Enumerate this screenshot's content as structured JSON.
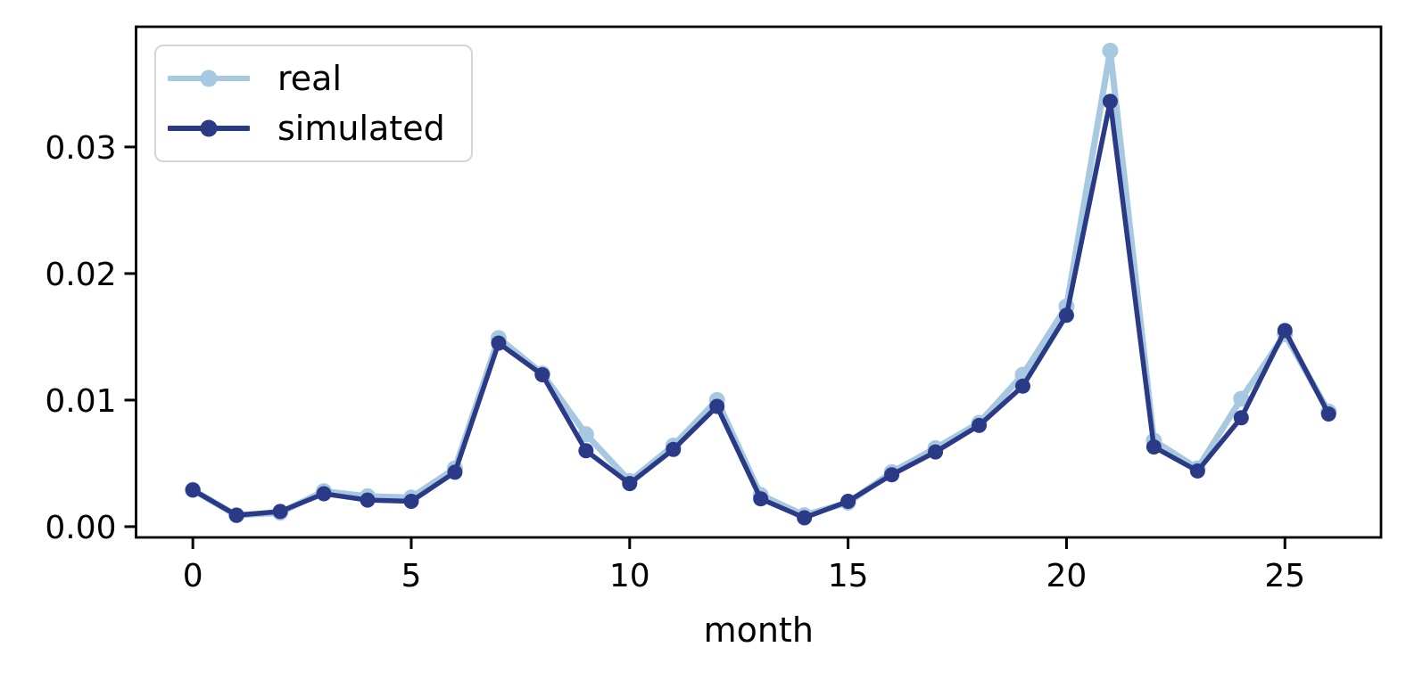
{
  "figure": {
    "background": "#ffffff",
    "axis_color": "#000000",
    "legend_border_color": "#d5d5d5"
  },
  "chart_data": {
    "type": "line",
    "title": "",
    "xlabel": "month",
    "ylabel": "",
    "grid": false,
    "legend_position": "upper-left",
    "x": [
      0,
      1,
      2,
      3,
      4,
      5,
      6,
      7,
      8,
      9,
      10,
      11,
      12,
      13,
      14,
      15,
      16,
      17,
      18,
      19,
      20,
      21,
      22,
      23,
      24,
      25,
      26
    ],
    "series": [
      {
        "name": "real",
        "color": "#a6c9e1",
        "marker": "circle",
        "values": [
          0.0029,
          0.0009,
          0.0011,
          0.0028,
          0.0024,
          0.0023,
          0.0046,
          0.0149,
          0.0121,
          0.0073,
          0.0036,
          0.0064,
          0.01,
          0.0025,
          0.0009,
          0.0019,
          0.0043,
          0.0062,
          0.0082,
          0.012,
          0.0174,
          0.0376,
          0.0068,
          0.0046,
          0.0101,
          0.0152,
          0.0091
        ]
      },
      {
        "name": "simulated",
        "color": "#2b3a86",
        "marker": "circle",
        "values": [
          0.0029,
          0.0009,
          0.0012,
          0.0026,
          0.0021,
          0.002,
          0.0043,
          0.0145,
          0.012,
          0.006,
          0.0034,
          0.0061,
          0.0095,
          0.0022,
          0.0007,
          0.002,
          0.0041,
          0.0059,
          0.008,
          0.0111,
          0.0167,
          0.0336,
          0.0063,
          0.0044,
          0.0086,
          0.0155,
          0.0089
        ]
      }
    ],
    "xticks": [
      {
        "v": 0,
        "label": "0"
      },
      {
        "v": 5,
        "label": "5"
      },
      {
        "v": 10,
        "label": "10"
      },
      {
        "v": 15,
        "label": "15"
      },
      {
        "v": 20,
        "label": "20"
      },
      {
        "v": 25,
        "label": "25"
      }
    ],
    "yticks": [
      {
        "v": 0.0,
        "label": "0.00"
      },
      {
        "v": 0.01,
        "label": "0.01"
      },
      {
        "v": 0.02,
        "label": "0.02"
      },
      {
        "v": 0.03,
        "label": "0.03"
      }
    ],
    "xlim": [
      -1.3,
      27.2
    ],
    "ylim": [
      -0.00085,
      0.0395
    ]
  }
}
